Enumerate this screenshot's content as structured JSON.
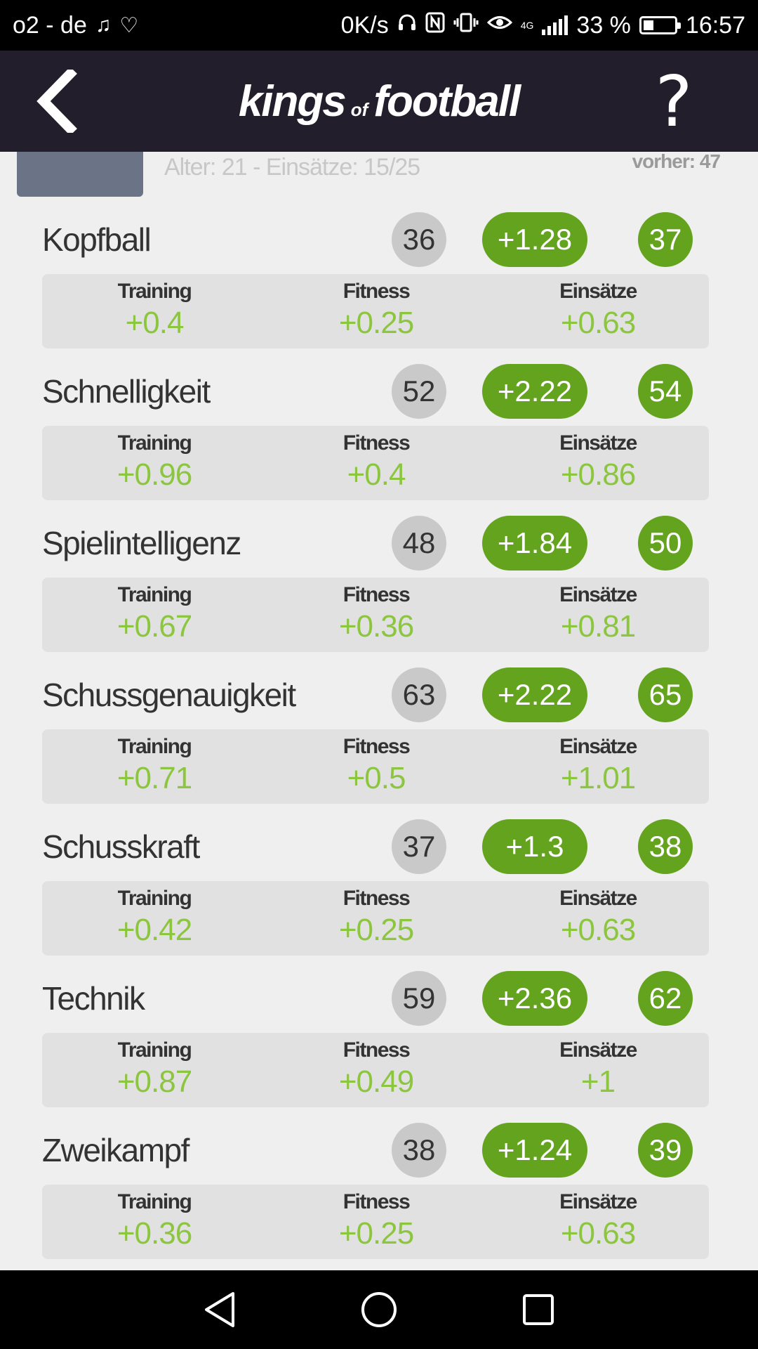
{
  "status_bar": {
    "carrier": "o2 - de",
    "net_speed": "0K/s",
    "network": "4G",
    "battery": "33 %",
    "time": "16:57"
  },
  "header": {
    "logo_main_left": "kings",
    "logo_of": "of",
    "logo_main_right": "football",
    "help": "?"
  },
  "player": {
    "info": "Alter: 21 - Einsätze: 15/25",
    "previous": "vorher: 47"
  },
  "breakdown_labels": {
    "training": "Training",
    "fitness": "Fitness",
    "appearances": "Einsätze"
  },
  "skills": [
    {
      "name": "Kopfball",
      "old": "36",
      "delta": "+1.28",
      "new": "37",
      "training": "+0.4",
      "fitness": "+0.25",
      "appearances": "+0.63"
    },
    {
      "name": "Schnelligkeit",
      "old": "52",
      "delta": "+2.22",
      "new": "54",
      "training": "+0.96",
      "fitness": "+0.4",
      "appearances": "+0.86"
    },
    {
      "name": "Spielintelligenz",
      "old": "48",
      "delta": "+1.84",
      "new": "50",
      "training": "+0.67",
      "fitness": "+0.36",
      "appearances": "+0.81"
    },
    {
      "name": "Schussgenauigkeit",
      "old": "63",
      "delta": "+2.22",
      "new": "65",
      "training": "+0.71",
      "fitness": "+0.5",
      "appearances": "+1.01"
    },
    {
      "name": "Schusskraft",
      "old": "37",
      "delta": "+1.3",
      "new": "38",
      "training": "+0.42",
      "fitness": "+0.25",
      "appearances": "+0.63"
    },
    {
      "name": "Technik",
      "old": "59",
      "delta": "+2.36",
      "new": "62",
      "training": "+0.87",
      "fitness": "+0.49",
      "appearances": "+1"
    },
    {
      "name": "Zweikampf",
      "old": "38",
      "delta": "+1.24",
      "new": "39",
      "training": "+0.36",
      "fitness": "+0.25",
      "appearances": "+0.63"
    }
  ],
  "colors": {
    "header_bg": "#221e2b",
    "accent_green": "#63a31e",
    "value_green": "#8cc63f",
    "old_badge": "#c9c9c9"
  }
}
